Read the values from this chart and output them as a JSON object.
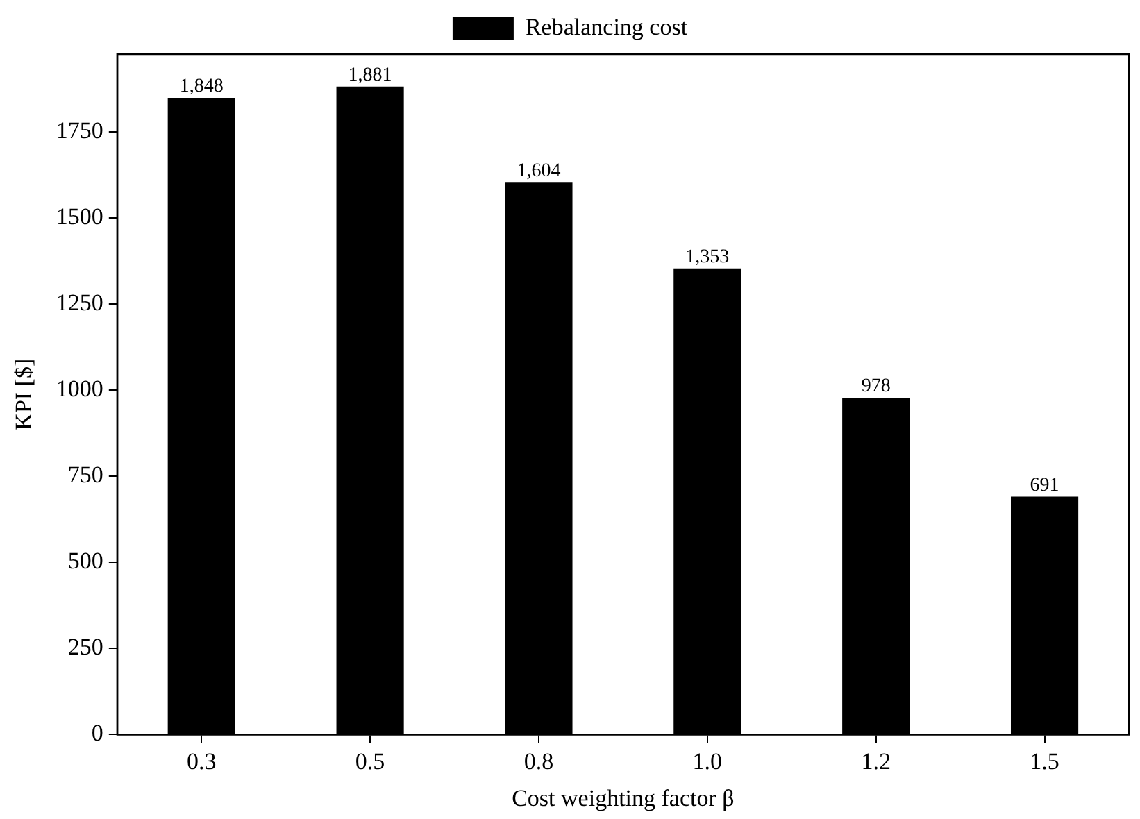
{
  "chart_data": {
    "type": "bar",
    "xlabel": "Cost weighting factor β",
    "ylabel": "KPI [$]",
    "categories": [
      "0.3",
      "0.5",
      "0.8",
      "1.0",
      "1.2",
      "1.5"
    ],
    "series": [
      {
        "name": "Rebalancing cost",
        "color": "#000000",
        "values": [
          1848,
          1881,
          1604,
          1353,
          978,
          691
        ],
        "value_labels": [
          "1,848",
          "1,881",
          "1,604",
          "1,353",
          "978",
          "691"
        ]
      }
    ],
    "ylim": [
      0,
      1975
    ],
    "yticks": [
      0,
      250,
      500,
      750,
      1000,
      1250,
      1500,
      1750
    ],
    "legend": "top"
  }
}
